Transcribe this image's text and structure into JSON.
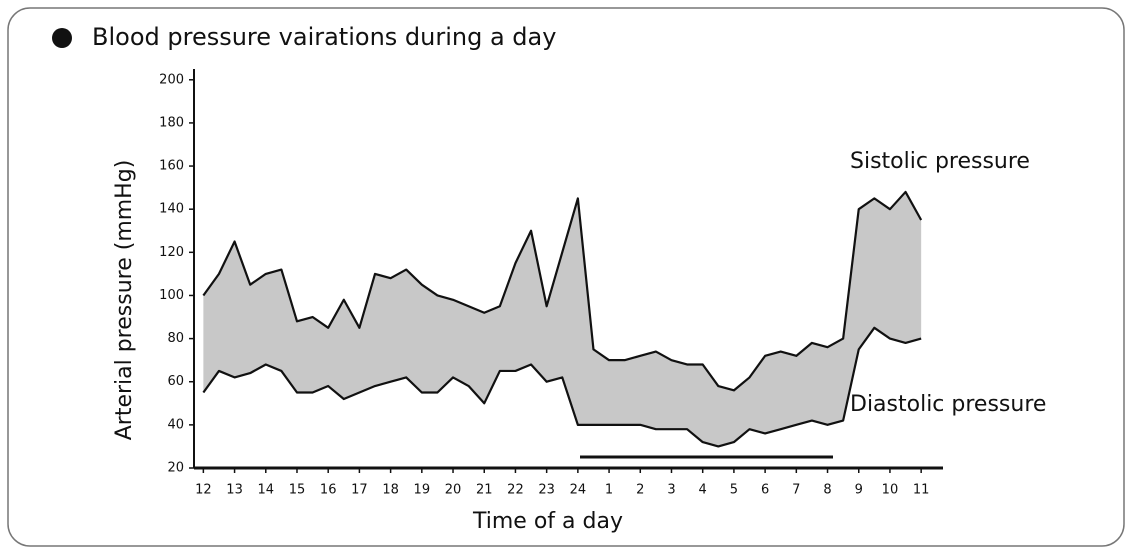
{
  "chart_data": {
    "type": "line",
    "title": "Blood pressure vairations during a day",
    "xlabel": "Time of a day",
    "ylabel": "Arterial pressure (mmHg)",
    "x": [
      12,
      12.5,
      13,
      13.5,
      14,
      14.5,
      15,
      15.5,
      16,
      16.5,
      17,
      17.5,
      18,
      18.5,
      19,
      19.5,
      20,
      20.5,
      21,
      21.5,
      22,
      22.5,
      23,
      23.5,
      24,
      24.5,
      25,
      25.5,
      26,
      26.5,
      27,
      27.5,
      28,
      28.5,
      29,
      29.5,
      30,
      30.5,
      31,
      31.5,
      32,
      32.5,
      33,
      33.5,
      34,
      34.5,
      35
    ],
    "series": [
      {
        "name": "Sistolic pressure",
        "color": "#111111",
        "values": [
          100,
          110,
          125,
          105,
          110,
          112,
          88,
          90,
          85,
          98,
          85,
          110,
          108,
          112,
          105,
          100,
          98,
          95,
          92,
          95,
          115,
          130,
          95,
          120,
          145,
          75,
          70,
          70,
          72,
          74,
          70,
          68,
          68,
          58,
          56,
          62,
          72,
          74,
          72,
          78,
          76,
          80,
          140,
          145,
          140,
          148,
          135
        ]
      },
      {
        "name": "Diastolic pressure",
        "color": "#111111",
        "values": [
          55,
          65,
          62,
          64,
          68,
          65,
          55,
          55,
          58,
          52,
          55,
          58,
          60,
          62,
          55,
          55,
          62,
          58,
          50,
          65,
          65,
          68,
          60,
          62,
          40,
          40,
          40,
          40,
          40,
          38,
          38,
          38,
          32,
          30,
          32,
          38,
          36,
          38,
          40,
          42,
          40,
          42,
          75,
          85,
          80,
          78,
          80
        ]
      }
    ],
    "fill": "#c8c8c8",
    "xlim": [
      11.7,
      35.7
    ],
    "ylim": [
      20,
      205
    ],
    "yticks": [
      20,
      40,
      60,
      80,
      100,
      120,
      140,
      160,
      180,
      200
    ],
    "xticks": [
      12,
      13,
      14,
      15,
      16,
      17,
      18,
      19,
      20,
      21,
      22,
      23,
      24,
      {
        "value": 25,
        "label": "1"
      },
      {
        "value": 26,
        "label": "2"
      },
      {
        "value": 27,
        "label": "3"
      },
      {
        "value": 28,
        "label": "4"
      },
      {
        "value": 29,
        "label": "5"
      },
      {
        "value": 30,
        "label": "6"
      },
      {
        "value": 31,
        "label": "7"
      },
      {
        "value": 32,
        "label": "8"
      },
      {
        "value": 33,
        "label": "9"
      },
      {
        "value": 34,
        "label": "10"
      },
      {
        "value": 35,
        "label": "11"
      }
    ]
  }
}
